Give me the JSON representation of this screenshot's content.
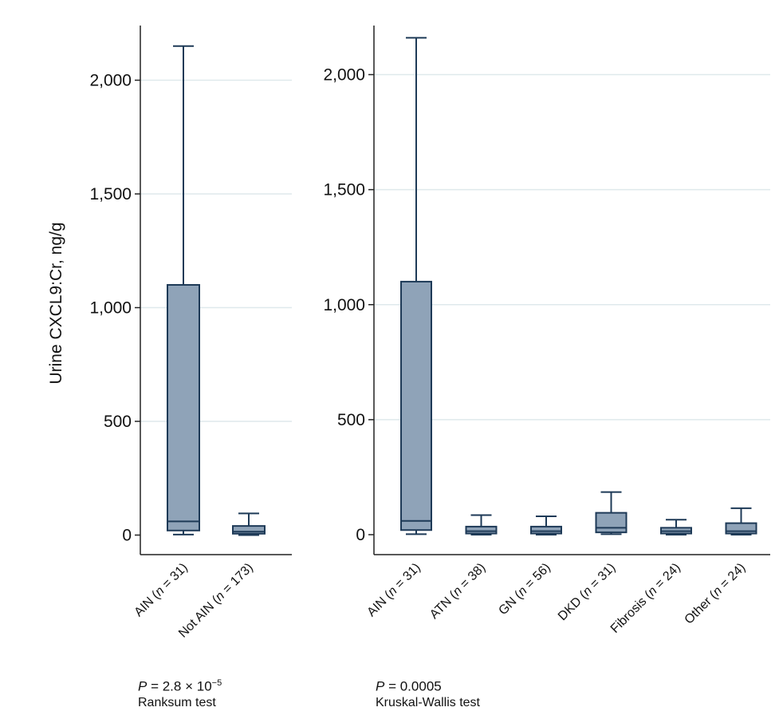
{
  "chart_data": [
    {
      "type": "box",
      "panel": "left",
      "ylabel": "Urine CXCL9:Cr, ng/g",
      "ylim": [
        -90,
        2230
      ],
      "yticks": [
        {
          "value": 0,
          "label": "0"
        },
        {
          "value": 500,
          "label": "500"
        },
        {
          "value": 1000,
          "label": "1,000"
        },
        {
          "value": 1500,
          "label": "1,500"
        },
        {
          "value": 2000,
          "label": "2,000"
        }
      ],
      "grid": true,
      "categories": [
        {
          "name": "AIN",
          "n_prefix": "n",
          "n_value": "= 31",
          "stats": {
            "min": 2,
            "q1": 20,
            "median": 60,
            "q3": 1100,
            "max": 2150
          }
        },
        {
          "name": "Not AIN",
          "n_prefix": "n",
          "n_value": "= 173",
          "stats": {
            "min": 0,
            "q1": 6,
            "median": 15,
            "q3": 40,
            "max": 95
          }
        }
      ],
      "test": {
        "p_prefix": "P",
        "p_text": "= 2.8 × 10",
        "p_exp": "−5",
        "name": "Ranksum test"
      }
    },
    {
      "type": "box",
      "panel": "right",
      "ylim": [
        -90,
        2230
      ],
      "yticks": [
        {
          "value": 0,
          "label": "0"
        },
        {
          "value": 500,
          "label": "500"
        },
        {
          "value": 1000,
          "label": "1,000"
        },
        {
          "value": 1500,
          "label": "1,500"
        },
        {
          "value": 2000,
          "label": "2,000"
        }
      ],
      "grid": true,
      "categories": [
        {
          "name": "AIN",
          "n_prefix": "n",
          "n_value": "= 31",
          "stats": {
            "min": 2,
            "q1": 20,
            "median": 60,
            "q3": 1100,
            "max": 2160
          }
        },
        {
          "name": "ATN",
          "n_prefix": "n",
          "n_value": "= 38",
          "stats": {
            "min": 0,
            "q1": 5,
            "median": 15,
            "q3": 35,
            "max": 85
          }
        },
        {
          "name": "GN",
          "n_prefix": "n",
          "n_value": "= 56",
          "stats": {
            "min": 0,
            "q1": 5,
            "median": 15,
            "q3": 35,
            "max": 80
          }
        },
        {
          "name": "DKD",
          "n_prefix": "n",
          "n_value": "= 31",
          "stats": {
            "min": 2,
            "q1": 10,
            "median": 30,
            "q3": 95,
            "max": 185
          }
        },
        {
          "name": "Fibrosis",
          "n_prefix": "n",
          "n_value": "= 24",
          "stats": {
            "min": 0,
            "q1": 5,
            "median": 15,
            "q3": 30,
            "max": 65
          }
        },
        {
          "name": "Other",
          "n_prefix": "n",
          "n_value": "= 24",
          "stats": {
            "min": 0,
            "q1": 5,
            "median": 15,
            "q3": 50,
            "max": 115
          }
        }
      ],
      "test": {
        "p_prefix": "P",
        "p_text": "= 0.0005",
        "p_exp": "",
        "name": "Kruskal-Wallis test"
      }
    }
  ],
  "colors": {
    "box_fill": "#8fa3b8",
    "box_stroke": "#1e3a57",
    "grid": "#dfe9ec",
    "axis": "#222222"
  }
}
